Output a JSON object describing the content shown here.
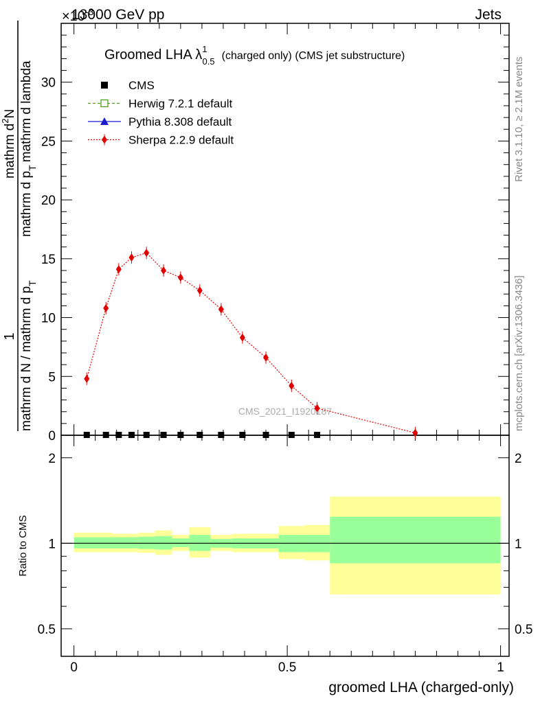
{
  "header": {
    "left": "13000 GeV pp",
    "right": "Jets",
    "exponent": "×10",
    "exponent_power": "-3"
  },
  "title": {
    "main": "Groomed LHA λ",
    "sup": "1",
    "sub": "0.5",
    "rest": "(charged only) (CMS jet substructure)"
  },
  "watermark": "CMS_2021_I1920187",
  "side_text": {
    "rivet": "Rivet 3.1.10, ≥ 2.1M events",
    "mcplots": "mcplots.cern.ch [arXiv:1306.3436]"
  },
  "ylabel_main": {
    "numerator_1": "1",
    "denominator_1": "mathrm d N / mathrm d p",
    "denominator_1_sub": "T",
    "numerator_2": "mathrm d",
    "numerator_2_sup": "2",
    "numerator_2_rest": "N",
    "denominator_2": "mathrm d p",
    "denominator_2_sub": "T",
    "denominator_2_rest": "mathrm d lambda"
  },
  "ylabel_ratio": "Ratio to CMS",
  "xlabel": "groomed LHA (charged-only)",
  "legend": [
    {
      "label": "CMS",
      "color": "#000000",
      "marker": "square-filled",
      "line": "none"
    },
    {
      "label": "Herwig 7.2.1 default",
      "color": "#4d9a1a",
      "marker": "square-open",
      "line": "dashed"
    },
    {
      "label": "Pythia 8.308 default",
      "color": "#1a1acc",
      "marker": "triangle",
      "line": "solid"
    },
    {
      "label": "Sherpa 2.2.9 default",
      "color": "#e00000",
      "marker": "diamond",
      "line": "dotted"
    }
  ],
  "chart_data": {
    "type": "scatter",
    "x_ticks": [
      "0",
      "0.5",
      "1"
    ],
    "y_ticks_main": [
      "0",
      "5",
      "10",
      "15",
      "20",
      "25",
      "30"
    ],
    "y_ticks_ratio": [
      "0.5",
      "1",
      "2"
    ],
    "xlim": [
      -0.03,
      1.02
    ],
    "ylim_main": [
      0,
      35
    ],
    "ylim_ratio": [
      0.4,
      2.4
    ],
    "ratio_log_scale": true,
    "cms_x": [
      0.03,
      0.075,
      0.105,
      0.135,
      0.17,
      0.21,
      0.25,
      0.295,
      0.345,
      0.395,
      0.45,
      0.51,
      0.57
    ],
    "cms_y": [
      0.03,
      0.03,
      0.03,
      0.03,
      0.03,
      0.03,
      0.03,
      0.03,
      0.03,
      0.03,
      0.03,
      0.03,
      0.03
    ],
    "sherpa_x": [
      0.03,
      0.075,
      0.105,
      0.135,
      0.17,
      0.21,
      0.25,
      0.295,
      0.345,
      0.395,
      0.45,
      0.51,
      0.57,
      0.8
    ],
    "sherpa_y": [
      4.8,
      10.8,
      14.1,
      15.1,
      15.5,
      14.0,
      13.4,
      12.3,
      10.7,
      8.3,
      6.6,
      4.2,
      2.3,
      0.2
    ],
    "bands": [
      {
        "x0": 0.0,
        "x1": 0.09,
        "green": [
          0.96,
          1.05
        ],
        "yellow": [
          0.93,
          1.09
        ]
      },
      {
        "x0": 0.09,
        "x1": 0.15,
        "green": [
          0.96,
          1.05
        ],
        "yellow": [
          0.93,
          1.08
        ]
      },
      {
        "x0": 0.15,
        "x1": 0.19,
        "green": [
          0.955,
          1.055
        ],
        "yellow": [
          0.925,
          1.09
        ]
      },
      {
        "x0": 0.19,
        "x1": 0.23,
        "green": [
          0.95,
          1.06
        ],
        "yellow": [
          0.91,
          1.11
        ]
      },
      {
        "x0": 0.23,
        "x1": 0.27,
        "green": [
          0.97,
          1.04
        ],
        "yellow": [
          0.94,
          1.07
        ]
      },
      {
        "x0": 0.27,
        "x1": 0.32,
        "green": [
          0.94,
          1.07
        ],
        "yellow": [
          0.89,
          1.14
        ]
      },
      {
        "x0": 0.32,
        "x1": 0.37,
        "green": [
          0.965,
          1.035
        ],
        "yellow": [
          0.94,
          1.07
        ]
      },
      {
        "x0": 0.37,
        "x1": 0.48,
        "green": [
          0.96,
          1.04
        ],
        "yellow": [
          0.93,
          1.08
        ]
      },
      {
        "x0": 0.48,
        "x1": 0.54,
        "green": [
          0.93,
          1.07
        ],
        "yellow": [
          0.88,
          1.15
        ]
      },
      {
        "x0": 0.54,
        "x1": 0.6,
        "green": [
          0.93,
          1.07
        ],
        "yellow": [
          0.87,
          1.16
        ]
      },
      {
        "x0": 0.6,
        "x1": 1.0,
        "green": [
          0.85,
          1.24
        ],
        "yellow": [
          0.66,
          1.46
        ]
      }
    ]
  }
}
